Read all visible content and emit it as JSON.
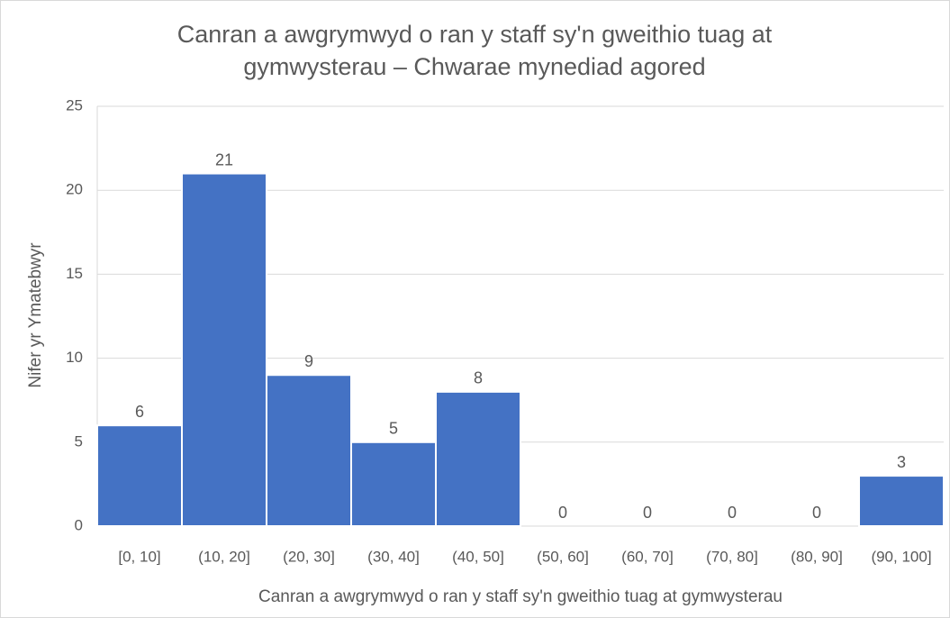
{
  "chart_data": {
    "type": "bar",
    "title": "Canran a awgrymwyd o ran y staff sy'n gweithio tuag at gymwysterau – Chwarae mynediad agored",
    "x_label": "Canran a awgrymwyd o ran y staff sy'n gweithio tuag at gymwysterau",
    "y_label": "Nifer yr Ymatebwyr",
    "categories": [
      "[0, 10]",
      "(10, 20]",
      "(20, 30]",
      "(30, 40]",
      "(40, 50]",
      "(50, 60]",
      "(60, 70]",
      "(70, 80]",
      "(80, 90]",
      "(90, 100]"
    ],
    "values": [
      6,
      21,
      9,
      5,
      8,
      0,
      0,
      0,
      0,
      3
    ],
    "color": "#4472c4",
    "ylim": [
      0,
      25
    ],
    "yticks": [
      0,
      5,
      10,
      15,
      20,
      25
    ],
    "grid": true
  }
}
